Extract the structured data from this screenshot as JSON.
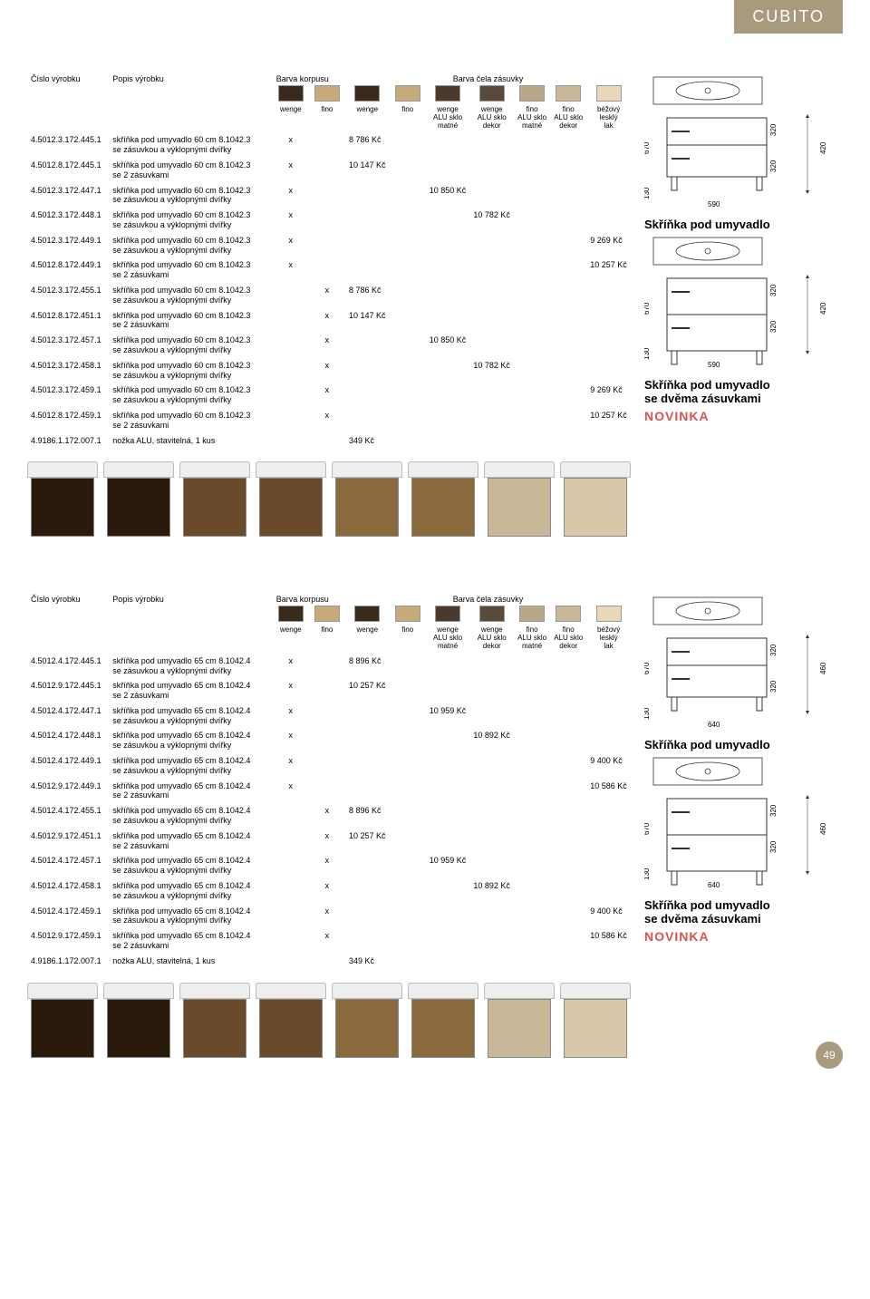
{
  "brand": "CUBITO",
  "page_number": "49",
  "novinka_label": "NOVINKA",
  "headers": {
    "id": "Číslo výrobku",
    "desc": "Popis výrobku",
    "korpus": "Barva korpusu",
    "zasuvka": "Barva čela zásuvky"
  },
  "swatch_labels": [
    "wenge",
    "fino",
    "wenge",
    "fino",
    "wenge\nALU sklo\nmatné",
    "wenge\nALU sklo\ndekor",
    "fino\nALU sklo\nmatné",
    "fino\nALU sklo\ndekor",
    "béžový\nlesklý\nlak"
  ],
  "swatch_colors": [
    "#3a2a1c",
    "#c8a97a",
    "#3a2a1c",
    "#c8a97a",
    "#4a3a2c",
    "#5a4a3c",
    "#b8a888",
    "#c8b898",
    "#e8d8b8"
  ],
  "section1": {
    "caption1": "Skříňka pod umyvadlo",
    "caption2": "Skříňka pod umyvadlo\nse dvěma zásuvkami",
    "dims": {
      "h_total": "670",
      "h_upper": "320",
      "h_lower": "320",
      "h_feet": "130",
      "w": "590",
      "d": "420"
    },
    "thumbs": [
      {
        "c": "#2a1a0c"
      },
      {
        "c": "#2a1a0c"
      },
      {
        "c": "#6b4a2c"
      },
      {
        "c": "#6b4a2c"
      },
      {
        "c": "#8a6a3c"
      },
      {
        "c": "#8a6a3c"
      },
      {
        "c": "#c8b898"
      },
      {
        "c": "#d8c8a8"
      }
    ],
    "rows": [
      {
        "id": "4.5012.3.172.445.1",
        "d": "skříňka pod umyvadlo 60 cm 8.1042.3\nse zásuvkou a výklopnými dvířky",
        "x": 0,
        "p": "8 786 Kč",
        "pc": 2
      },
      {
        "id": "4.5012.8.172.445.1",
        "d": "skříňka pod umyvadlo 60 cm 8.1042.3\nse 2 zásuvkami",
        "x": 0,
        "p": "10 147 Kč",
        "pc": 2
      },
      {
        "id": "4.5012.3.172.447.1",
        "d": "skříňka pod umyvadlo 60 cm 8.1042.3\nse zásuvkou a výklopnými dvířky",
        "x": 0,
        "p": "10 850 Kč",
        "pc": 4
      },
      {
        "id": "4.5012.3.172.448.1",
        "d": "skříňka pod umyvadlo 60 cm 8.1042.3\nse zásuvkou a výklopnými dvířky",
        "x": 0,
        "p": "10 782 Kč",
        "pc": 5
      },
      {
        "id": "4.5012.3.172.449.1",
        "d": "skříňka pod umyvadlo 60 cm 8.1042.3\nse zásuvkou a výklopnými dvířky",
        "x": 0,
        "p": "9 269 Kč",
        "pc": 8
      },
      {
        "id": "4.5012.8.172.449.1",
        "d": "skříňka pod umyvadlo 60 cm 8.1042.3\nse 2 zásuvkami",
        "x": 0,
        "p": "10 257 Kč",
        "pc": 8
      },
      {
        "id": "4.5012.3.172.455.1",
        "d": "skříňka pod umyvadlo 60 cm 8.1042.3\nse zásuvkou a výklopnými dvířky",
        "x": 1,
        "p": "8 786 Kč",
        "pc": 2
      },
      {
        "id": "4.5012.8.172.451.1",
        "d": "skříňka pod umyvadlo 60 cm 8.1042.3\nse 2 zásuvkami",
        "x": 1,
        "p": "10 147 Kč",
        "pc": 2
      },
      {
        "id": "4.5012.3.172.457.1",
        "d": "skříňka pod umyvadlo 60 cm 8.1042.3\nse zásuvkou a výklopnými dvířky",
        "x": 1,
        "p": "10 850 Kč",
        "pc": 4
      },
      {
        "id": "4.5012.3.172.458.1",
        "d": "skříňka pod umyvadlo 60 cm 8.1042.3\nse zásuvkou a výklopnými dvířky",
        "x": 1,
        "p": "10 782 Kč",
        "pc": 5
      },
      {
        "id": "4.5012.3.172.459.1",
        "d": "skříňka pod umyvadlo 60 cm 8.1042.3\nse zásuvkou a výklopnými dvířky",
        "x": 1,
        "p": "9 269 Kč",
        "pc": 8
      },
      {
        "id": "4.5012.8.172.459.1",
        "d": "skříňka pod umyvadlo 60 cm 8.1042.3\nse 2 zásuvkami",
        "x": 1,
        "p": "10 257 Kč",
        "pc": 8
      },
      {
        "id": "4.9186.1.172.007.1",
        "d": "nožka ALU, stavitelná, 1 kus",
        "x": -1,
        "p": "349 Kč",
        "pc": 2
      }
    ]
  },
  "section2": {
    "caption1": "Skříňka pod umyvadlo",
    "caption2": "Skříňka pod umyvadlo\nse dvěma zásuvkami",
    "dims": {
      "h_total": "670",
      "h_upper": "320",
      "h_lower": "320",
      "h_feet": "130",
      "w": "640",
      "d": "460"
    },
    "thumbs": [
      {
        "c": "#2a1a0c"
      },
      {
        "c": "#2a1a0c"
      },
      {
        "c": "#6b4a2c"
      },
      {
        "c": "#6b4a2c"
      },
      {
        "c": "#8a6a3c"
      },
      {
        "c": "#8a6a3c"
      },
      {
        "c": "#c8b898"
      },
      {
        "c": "#d8c8a8"
      }
    ],
    "rows": [
      {
        "id": "4.5012.4.172.445.1",
        "d": "skříňka pod umyvadlo 65 cm 8.1042.4\nse zásuvkou a výklopnými dvířky",
        "x": 0,
        "p": "8 896 Kč",
        "pc": 2
      },
      {
        "id": "4.5012.9.172.445.1",
        "d": "skříňka pod umyvadlo 65 cm 8.1042.4\nse 2 zásuvkami",
        "x": 0,
        "p": "10 257 Kč",
        "pc": 2
      },
      {
        "id": "4.5012.4.172.447.1",
        "d": "skříňka pod umyvadlo 65 cm 8.1042.4\nse zásuvkou a výklopnými dvířky",
        "x": 0,
        "p": "10 959 Kč",
        "pc": 4
      },
      {
        "id": "4.5012.4.172.448.1",
        "d": "skříňka pod umyvadlo 65 cm 8.1042.4\nse zásuvkou a výklopnými dvířky",
        "x": 0,
        "p": "10 892 Kč",
        "pc": 5
      },
      {
        "id": "4.5012.4.172.449.1",
        "d": "skříňka pod umyvadlo 65 cm 8.1042.4\nse zásuvkou a výklopnými dvířky",
        "x": 0,
        "p": "9 400 Kč",
        "pc": 8
      },
      {
        "id": "4.5012.9.172.449.1",
        "d": "skříňka pod umyvadlo 65 cm 8.1042.4\nse 2 zásuvkami",
        "x": 0,
        "p": "10 586 Kč",
        "pc": 8
      },
      {
        "id": "4.5012.4.172.455.1",
        "d": "skříňka pod umyvadlo 65 cm 8.1042.4\nse zásuvkou a výklopnými dvířky",
        "x": 1,
        "p": "8 896 Kč",
        "pc": 2
      },
      {
        "id": "4.5012.9.172.451.1",
        "d": "skříňka pod umyvadlo 65 cm 8.1042.4\nse 2 zásuvkami",
        "x": 1,
        "p": "10 257 Kč",
        "pc": 2
      },
      {
        "id": "4.5012.4.172.457.1",
        "d": "skříňka pod umyvadlo 65 cm 8.1042.4\nse zásuvkou a výklopnými dvířky",
        "x": 1,
        "p": "10 959 Kč",
        "pc": 4
      },
      {
        "id": "4.5012.4.172.458.1",
        "d": "skříňka pod umyvadlo 65 cm 8.1042.4\nse zásuvkou a výklopnými dvířky",
        "x": 1,
        "p": "10 892 Kč",
        "pc": 5
      },
      {
        "id": "4.5012.4.172.459.1",
        "d": "skříňka pod umyvadlo 65 cm 8.1042.4\nse zásuvkou a výklopnými dvířky",
        "x": 1,
        "p": "9 400 Kč",
        "pc": 8
      },
      {
        "id": "4.5012.9.172.459.1",
        "d": "skříňka pod umyvadlo 65 cm 8.1042.4\nse 2 zásuvkami",
        "x": 1,
        "p": "10 586 Kč",
        "pc": 8
      },
      {
        "id": "4.9186.1.172.007.1",
        "d": "nožka ALU, stavitelná, 1 kus",
        "x": -1,
        "p": "349 Kč",
        "pc": 2
      }
    ]
  }
}
